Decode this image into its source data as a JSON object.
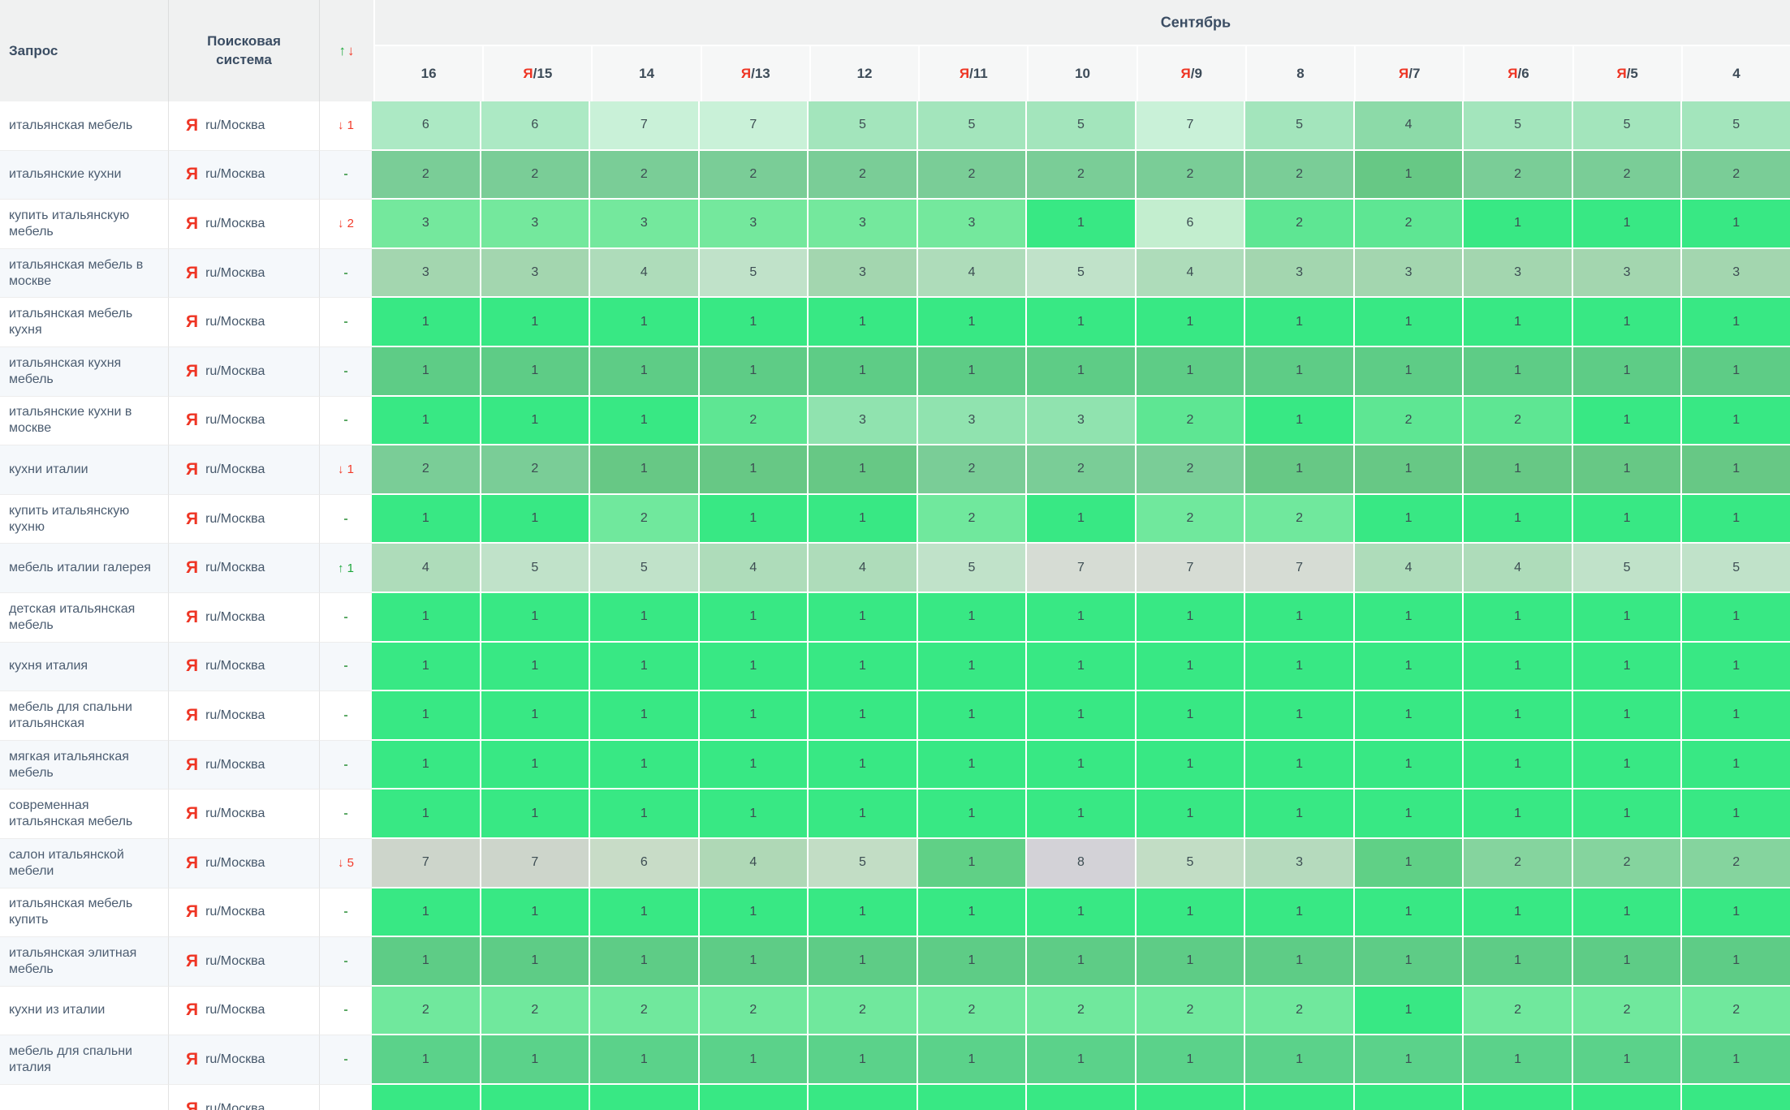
{
  "header": {
    "query": "Запрос",
    "engine": "Поисковая система",
    "up_arrow": "↑",
    "down_arrow": "↓",
    "month": "Сентябрь",
    "ya_prefix": "Я",
    "ya_separator": "/",
    "dates": [
      {
        "ya": false,
        "day": "16"
      },
      {
        "ya": true,
        "day": "15"
      },
      {
        "ya": false,
        "day": "14"
      },
      {
        "ya": true,
        "day": "13"
      },
      {
        "ya": false,
        "day": "12"
      },
      {
        "ya": true,
        "day": "11"
      },
      {
        "ya": false,
        "day": "10"
      },
      {
        "ya": true,
        "day": "9"
      },
      {
        "ya": false,
        "day": "8"
      },
      {
        "ya": true,
        "day": "7"
      },
      {
        "ya": true,
        "day": "6"
      },
      {
        "ya": true,
        "day": "5"
      },
      {
        "ya": false,
        "day": "4"
      }
    ]
  },
  "engine_cell": {
    "icon": "Я",
    "label": "ru/Москва"
  },
  "change_dash": "-",
  "change_arrows": {
    "up": "↑",
    "down": "↓"
  },
  "colors": {
    "accent_red": "#ee3524",
    "accent_green": "#1ea83c",
    "row_shade": "#f5f8fb",
    "palette": {
      "v1": "#38e884",
      "v2": "#5ee693",
      "v2l": "#70e89d",
      "v3": "#74e89d",
      "v3l": "#90e3af",
      "v6": "#c3eecf",
      "m4": "#8cdaa8",
      "m5": "#a3e5bc",
      "m6": "#ace9c4",
      "m7": "#c9f1d8",
      "u1": "#67c885",
      "u2": "#7acd97",
      "d1": "#5ecc86",
      "d1b": "#5bd28a",
      "s3": "#a3d6af",
      "s4": "#aedcba",
      "s5": "#c0e2c9",
      "s7": "#d6dcd4",
      "e1": "#60d086",
      "e2": "#85d49e",
      "e3": "#b5dabd",
      "e4": "#afd8b6",
      "e5": "#c2ddc5",
      "e6": "#c8dcc7",
      "e7": "#cdd5cb",
      "e8": "#d3d2d7"
    }
  },
  "rows": [
    {
      "query": "итальянская мебель",
      "change": {
        "dir": "down",
        "value": "1"
      },
      "cells": [
        [
          "6",
          "m6"
        ],
        [
          "6",
          "m6"
        ],
        [
          "7",
          "m7"
        ],
        [
          "7",
          "m7"
        ],
        [
          "5",
          "m5"
        ],
        [
          "5",
          "m5"
        ],
        [
          "5",
          "m5"
        ],
        [
          "7",
          "m7"
        ],
        [
          "5",
          "m5"
        ],
        [
          "4",
          "m4"
        ],
        [
          "5",
          "m5"
        ],
        [
          "5",
          "m5"
        ],
        [
          "5",
          "m5"
        ]
      ]
    },
    {
      "query": "итальянские кухни",
      "change": {
        "dir": "dash"
      },
      "cells": [
        [
          "2",
          "u2"
        ],
        [
          "2",
          "u2"
        ],
        [
          "2",
          "u2"
        ],
        [
          "2",
          "u2"
        ],
        [
          "2",
          "u2"
        ],
        [
          "2",
          "u2"
        ],
        [
          "2",
          "u2"
        ],
        [
          "2",
          "u2"
        ],
        [
          "2",
          "u2"
        ],
        [
          "1",
          "u1"
        ],
        [
          "2",
          "u2"
        ],
        [
          "2",
          "u2"
        ],
        [
          "2",
          "u2"
        ]
      ]
    },
    {
      "query": "купить итальянскую мебель",
      "change": {
        "dir": "down",
        "value": "2"
      },
      "cells": [
        [
          "3",
          "v3"
        ],
        [
          "3",
          "v3"
        ],
        [
          "3",
          "v3"
        ],
        [
          "3",
          "v3"
        ],
        [
          "3",
          "v3"
        ],
        [
          "3",
          "v3"
        ],
        [
          "1",
          "v1"
        ],
        [
          "6",
          "v6"
        ],
        [
          "2",
          "v2"
        ],
        [
          "2",
          "v2"
        ],
        [
          "1",
          "v1"
        ],
        [
          "1",
          "v1"
        ],
        [
          "1",
          "v1"
        ]
      ]
    },
    {
      "query": "итальянская мебель в москве",
      "change": {
        "dir": "dash"
      },
      "cells": [
        [
          "3",
          "s3"
        ],
        [
          "3",
          "s3"
        ],
        [
          "4",
          "s4"
        ],
        [
          "5",
          "s5"
        ],
        [
          "3",
          "s3"
        ],
        [
          "4",
          "s4"
        ],
        [
          "5",
          "s5"
        ],
        [
          "4",
          "s4"
        ],
        [
          "3",
          "s3"
        ],
        [
          "3",
          "s3"
        ],
        [
          "3",
          "s3"
        ],
        [
          "3",
          "s3"
        ],
        [
          "3",
          "s3"
        ]
      ]
    },
    {
      "query": "итальянская мебель кухня",
      "change": {
        "dir": "dash"
      },
      "cells": [
        [
          "1",
          "v1"
        ],
        [
          "1",
          "v1"
        ],
        [
          "1",
          "v1"
        ],
        [
          "1",
          "v1"
        ],
        [
          "1",
          "v1"
        ],
        [
          "1",
          "v1"
        ],
        [
          "1",
          "v1"
        ],
        [
          "1",
          "v1"
        ],
        [
          "1",
          "v1"
        ],
        [
          "1",
          "v1"
        ],
        [
          "1",
          "v1"
        ],
        [
          "1",
          "v1"
        ],
        [
          "1",
          "v1"
        ]
      ]
    },
    {
      "query": "итальянская кухня мебель",
      "change": {
        "dir": "dash"
      },
      "cells": [
        [
          "1",
          "d1"
        ],
        [
          "1",
          "d1"
        ],
        [
          "1",
          "d1"
        ],
        [
          "1",
          "d1"
        ],
        [
          "1",
          "d1"
        ],
        [
          "1",
          "d1"
        ],
        [
          "1",
          "d1"
        ],
        [
          "1",
          "d1"
        ],
        [
          "1",
          "d1"
        ],
        [
          "1",
          "d1"
        ],
        [
          "1",
          "d1"
        ],
        [
          "1",
          "d1"
        ],
        [
          "1",
          "d1"
        ]
      ]
    },
    {
      "query": "итальянские кухни в москве",
      "change": {
        "dir": "dash"
      },
      "cells": [
        [
          "1",
          "v1"
        ],
        [
          "1",
          "v1"
        ],
        [
          "1",
          "v1"
        ],
        [
          "2",
          "v2"
        ],
        [
          "3",
          "v3l"
        ],
        [
          "3",
          "v3l"
        ],
        [
          "3",
          "v3l"
        ],
        [
          "2",
          "v2"
        ],
        [
          "1",
          "v1"
        ],
        [
          "2",
          "v2"
        ],
        [
          "2",
          "v2"
        ],
        [
          "1",
          "v1"
        ],
        [
          "1",
          "v1"
        ]
      ]
    },
    {
      "query": "кухни италии",
      "change": {
        "dir": "down",
        "value": "1"
      },
      "cells": [
        [
          "2",
          "u2"
        ],
        [
          "2",
          "u2"
        ],
        [
          "1",
          "u1"
        ],
        [
          "1",
          "u1"
        ],
        [
          "1",
          "u1"
        ],
        [
          "2",
          "u2"
        ],
        [
          "2",
          "u2"
        ],
        [
          "2",
          "u2"
        ],
        [
          "1",
          "u1"
        ],
        [
          "1",
          "u1"
        ],
        [
          "1",
          "u1"
        ],
        [
          "1",
          "u1"
        ],
        [
          "1",
          "u1"
        ]
      ]
    },
    {
      "query": "купить итальянскую кухню",
      "change": {
        "dir": "dash"
      },
      "cells": [
        [
          "1",
          "v1"
        ],
        [
          "1",
          "v1"
        ],
        [
          "2",
          "v2l"
        ],
        [
          "1",
          "v1"
        ],
        [
          "1",
          "v1"
        ],
        [
          "2",
          "v2l"
        ],
        [
          "1",
          "v1"
        ],
        [
          "2",
          "v2l"
        ],
        [
          "2",
          "v2l"
        ],
        [
          "1",
          "v1"
        ],
        [
          "1",
          "v1"
        ],
        [
          "1",
          "v1"
        ],
        [
          "1",
          "v1"
        ]
      ]
    },
    {
      "query": "мебель италии галерея",
      "change": {
        "dir": "up",
        "value": "1"
      },
      "cells": [
        [
          "4",
          "s4"
        ],
        [
          "5",
          "s5"
        ],
        [
          "5",
          "s5"
        ],
        [
          "4",
          "s4"
        ],
        [
          "4",
          "s4"
        ],
        [
          "5",
          "s5"
        ],
        [
          "7",
          "s7"
        ],
        [
          "7",
          "s7"
        ],
        [
          "7",
          "s7"
        ],
        [
          "4",
          "s4"
        ],
        [
          "4",
          "s4"
        ],
        [
          "5",
          "s5"
        ],
        [
          "5",
          "s5"
        ]
      ]
    },
    {
      "query": "детская итальянская мебель",
      "change": {
        "dir": "dash"
      },
      "cells": [
        [
          "1",
          "v1"
        ],
        [
          "1",
          "v1"
        ],
        [
          "1",
          "v1"
        ],
        [
          "1",
          "v1"
        ],
        [
          "1",
          "v1"
        ],
        [
          "1",
          "v1"
        ],
        [
          "1",
          "v1"
        ],
        [
          "1",
          "v1"
        ],
        [
          "1",
          "v1"
        ],
        [
          "1",
          "v1"
        ],
        [
          "1",
          "v1"
        ],
        [
          "1",
          "v1"
        ],
        [
          "1",
          "v1"
        ]
      ]
    },
    {
      "query": "кухня италия",
      "change": {
        "dir": "dash"
      },
      "cells": [
        [
          "1",
          "v1"
        ],
        [
          "1",
          "v1"
        ],
        [
          "1",
          "v1"
        ],
        [
          "1",
          "v1"
        ],
        [
          "1",
          "v1"
        ],
        [
          "1",
          "v1"
        ],
        [
          "1",
          "v1"
        ],
        [
          "1",
          "v1"
        ],
        [
          "1",
          "v1"
        ],
        [
          "1",
          "v1"
        ],
        [
          "1",
          "v1"
        ],
        [
          "1",
          "v1"
        ],
        [
          "1",
          "v1"
        ]
      ]
    },
    {
      "query": "мебель для спальни итальянская",
      "change": {
        "dir": "dash"
      },
      "cells": [
        [
          "1",
          "v1"
        ],
        [
          "1",
          "v1"
        ],
        [
          "1",
          "v1"
        ],
        [
          "1",
          "v1"
        ],
        [
          "1",
          "v1"
        ],
        [
          "1",
          "v1"
        ],
        [
          "1",
          "v1"
        ],
        [
          "1",
          "v1"
        ],
        [
          "1",
          "v1"
        ],
        [
          "1",
          "v1"
        ],
        [
          "1",
          "v1"
        ],
        [
          "1",
          "v1"
        ],
        [
          "1",
          "v1"
        ]
      ]
    },
    {
      "query": "мягкая итальянская мебель",
      "change": {
        "dir": "dash"
      },
      "cells": [
        [
          "1",
          "v1"
        ],
        [
          "1",
          "v1"
        ],
        [
          "1",
          "v1"
        ],
        [
          "1",
          "v1"
        ],
        [
          "1",
          "v1"
        ],
        [
          "1",
          "v1"
        ],
        [
          "1",
          "v1"
        ],
        [
          "1",
          "v1"
        ],
        [
          "1",
          "v1"
        ],
        [
          "1",
          "v1"
        ],
        [
          "1",
          "v1"
        ],
        [
          "1",
          "v1"
        ],
        [
          "1",
          "v1"
        ]
      ]
    },
    {
      "query": "современная итальянская мебель",
      "change": {
        "dir": "dash"
      },
      "cells": [
        [
          "1",
          "v1"
        ],
        [
          "1",
          "v1"
        ],
        [
          "1",
          "v1"
        ],
        [
          "1",
          "v1"
        ],
        [
          "1",
          "v1"
        ],
        [
          "1",
          "v1"
        ],
        [
          "1",
          "v1"
        ],
        [
          "1",
          "v1"
        ],
        [
          "1",
          "v1"
        ],
        [
          "1",
          "v1"
        ],
        [
          "1",
          "v1"
        ],
        [
          "1",
          "v1"
        ],
        [
          "1",
          "v1"
        ]
      ]
    },
    {
      "query": "салон итальянской мебели",
      "change": {
        "dir": "down",
        "value": "5"
      },
      "cells": [
        [
          "7",
          "e7"
        ],
        [
          "7",
          "e7"
        ],
        [
          "6",
          "e6"
        ],
        [
          "4",
          "e4"
        ],
        [
          "5",
          "e5"
        ],
        [
          "1",
          "e1"
        ],
        [
          "8",
          "e8"
        ],
        [
          "5",
          "e5"
        ],
        [
          "3",
          "e3"
        ],
        [
          "1",
          "e1"
        ],
        [
          "2",
          "e2"
        ],
        [
          "2",
          "e2"
        ],
        [
          "2",
          "e2"
        ]
      ]
    },
    {
      "query": "итальянская мебель купить",
      "change": {
        "dir": "dash"
      },
      "cells": [
        [
          "1",
          "v1"
        ],
        [
          "1",
          "v1"
        ],
        [
          "1",
          "v1"
        ],
        [
          "1",
          "v1"
        ],
        [
          "1",
          "v1"
        ],
        [
          "1",
          "v1"
        ],
        [
          "1",
          "v1"
        ],
        [
          "1",
          "v1"
        ],
        [
          "1",
          "v1"
        ],
        [
          "1",
          "v1"
        ],
        [
          "1",
          "v1"
        ],
        [
          "1",
          "v1"
        ],
        [
          "1",
          "v1"
        ]
      ]
    },
    {
      "query": "итальянская элитная мебель",
      "change": {
        "dir": "dash"
      },
      "cells": [
        [
          "1",
          "d1"
        ],
        [
          "1",
          "d1"
        ],
        [
          "1",
          "d1"
        ],
        [
          "1",
          "d1"
        ],
        [
          "1",
          "d1"
        ],
        [
          "1",
          "d1"
        ],
        [
          "1",
          "d1"
        ],
        [
          "1",
          "d1"
        ],
        [
          "1",
          "d1"
        ],
        [
          "1",
          "d1"
        ],
        [
          "1",
          "d1"
        ],
        [
          "1",
          "d1"
        ],
        [
          "1",
          "d1"
        ]
      ]
    },
    {
      "query": "кухни из италии",
      "change": {
        "dir": "dash"
      },
      "cells": [
        [
          "2",
          "v2l"
        ],
        [
          "2",
          "v2l"
        ],
        [
          "2",
          "v2l"
        ],
        [
          "2",
          "v2l"
        ],
        [
          "2",
          "v2l"
        ],
        [
          "2",
          "v2l"
        ],
        [
          "2",
          "v2l"
        ],
        [
          "2",
          "v2l"
        ],
        [
          "2",
          "v2l"
        ],
        [
          "1",
          "v1"
        ],
        [
          "2",
          "v2l"
        ],
        [
          "2",
          "v2l"
        ],
        [
          "2",
          "v2l"
        ]
      ]
    },
    {
      "query": "мебель для спальни италия",
      "change": {
        "dir": "dash"
      },
      "cells": [
        [
          "1",
          "d1b"
        ],
        [
          "1",
          "d1b"
        ],
        [
          "1",
          "d1b"
        ],
        [
          "1",
          "d1b"
        ],
        [
          "1",
          "d1b"
        ],
        [
          "1",
          "d1b"
        ],
        [
          "1",
          "d1b"
        ],
        [
          "1",
          "d1b"
        ],
        [
          "1",
          "d1b"
        ],
        [
          "1",
          "d1b"
        ],
        [
          "1",
          "d1b"
        ],
        [
          "1",
          "d1b"
        ],
        [
          "1",
          "d1b"
        ]
      ]
    },
    {
      "query": "",
      "change": null,
      "cells": [
        [
          "",
          "v1"
        ],
        [
          "",
          "v1"
        ],
        [
          "",
          "v1"
        ],
        [
          "",
          "v1"
        ],
        [
          "",
          "v1"
        ],
        [
          "",
          "v1"
        ],
        [
          "",
          "v1"
        ],
        [
          "",
          "v1"
        ],
        [
          "",
          "v1"
        ],
        [
          "",
          "v1"
        ],
        [
          "",
          "v1"
        ],
        [
          "",
          "v1"
        ],
        [
          "",
          "v1"
        ]
      ]
    }
  ]
}
